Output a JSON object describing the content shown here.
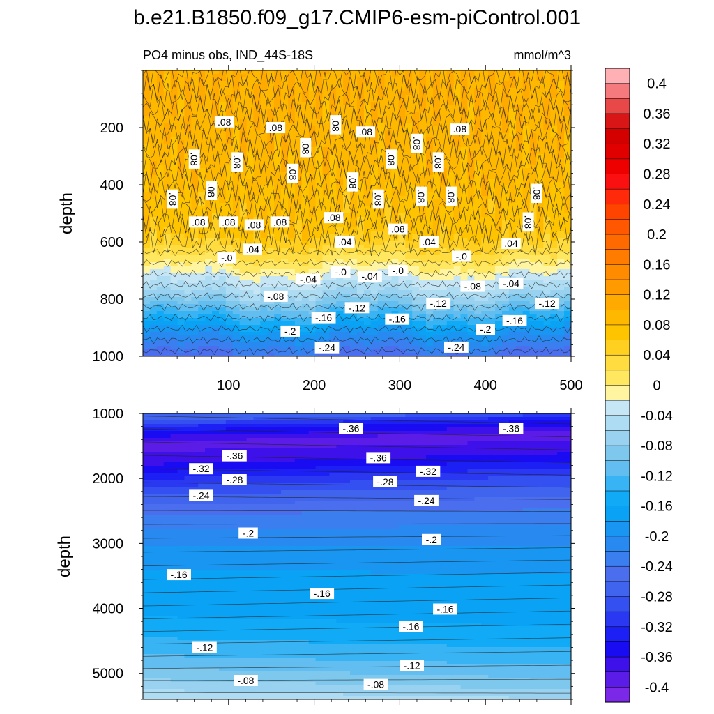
{
  "figure": {
    "title": "b.e21.B1850.f09_g17.CMIP6-esm-piControl.001",
    "left_label": "PO4 minus obs, IND_44S-18S",
    "right_label": "mmol/m^3"
  },
  "chart_data": [
    {
      "type": "contour",
      "panel": "upper",
      "ylabel": "depth",
      "xlabel": "",
      "xlim": [
        0,
        500
      ],
      "ylim": [
        1000,
        0
      ],
      "x_ticks": [
        "100",
        "200",
        "300",
        "400",
        "500"
      ],
      "y_ticks": [
        "200",
        "400",
        "600",
        "800",
        "1000"
      ],
      "x_tick_values": [
        100,
        200,
        300,
        400,
        500
      ],
      "y_tick_values": [
        200,
        400,
        600,
        800,
        1000
      ],
      "depth_profile": [
        {
          "depth": 5,
          "value": 0.1
        },
        {
          "depth": 300,
          "value": 0.09
        },
        {
          "depth": 560,
          "value": 0.07
        },
        {
          "depth": 640,
          "value": 0.03
        },
        {
          "depth": 700,
          "value": -0.01
        },
        {
          "depth": 780,
          "value": -0.06
        },
        {
          "depth": 860,
          "value": -0.13
        },
        {
          "depth": 920,
          "value": -0.19
        },
        {
          "depth": 1000,
          "value": -0.25
        }
      ],
      "contour_labels": [
        {
          "text": ".08",
          "x": 95,
          "depth": 180
        },
        {
          "text": ".08",
          "x": 155,
          "depth": 200
        },
        {
          "text": ".08",
          "x": 225,
          "depth": 190
        },
        {
          "text": ".08",
          "x": 190,
          "depth": 270
        },
        {
          "text": ".08",
          "x": 260,
          "depth": 215
        },
        {
          "text": ".08",
          "x": 320,
          "depth": 255
        },
        {
          "text": ".08",
          "x": 370,
          "depth": 205
        },
        {
          "text": ".08",
          "x": 60,
          "depth": 310
        },
        {
          "text": ".08",
          "x": 110,
          "depth": 320
        },
        {
          "text": ".08",
          "x": 290,
          "depth": 310
        },
        {
          "text": ".08",
          "x": 345,
          "depth": 320
        },
        {
          "text": ".08",
          "x": 175,
          "depth": 360
        },
        {
          "text": ".08",
          "x": 245,
          "depth": 390
        },
        {
          "text": ".08",
          "x": 80,
          "depth": 420
        },
        {
          "text": ".08",
          "x": 35,
          "depth": 450
        },
        {
          "text": ".08",
          "x": 275,
          "depth": 450
        },
        {
          "text": ".08",
          "x": 325,
          "depth": 440
        },
        {
          "text": ".08",
          "x": 360,
          "depth": 440
        },
        {
          "text": ".08",
          "x": 460,
          "depth": 430
        },
        {
          "text": ".08",
          "x": 65,
          "depth": 530
        },
        {
          "text": ".08",
          "x": 100,
          "depth": 530
        },
        {
          "text": ".08",
          "x": 130,
          "depth": 540
        },
        {
          "text": ".08",
          "x": 160,
          "depth": 530
        },
        {
          "text": ".08",
          "x": 223,
          "depth": 515
        },
        {
          "text": ".08",
          "x": 298,
          "depth": 555
        },
        {
          "text": ".08",
          "x": 450,
          "depth": 530
        },
        {
          "text": ".04",
          "x": 128,
          "depth": 625
        },
        {
          "text": ".04",
          "x": 236,
          "depth": 600
        },
        {
          "text": ".04",
          "x": 334,
          "depth": 600
        },
        {
          "text": ".04",
          "x": 430,
          "depth": 605
        },
        {
          "text": "-.0",
          "x": 98,
          "depth": 655
        },
        {
          "text": "-.0",
          "x": 231,
          "depth": 705
        },
        {
          "text": "-.0",
          "x": 298,
          "depth": 700
        },
        {
          "text": "-.0",
          "x": 372,
          "depth": 650
        },
        {
          "text": "-.04",
          "x": 193,
          "depth": 730
        },
        {
          "text": "-.04",
          "x": 265,
          "depth": 720
        },
        {
          "text": "-.04",
          "x": 430,
          "depth": 745
        },
        {
          "text": "-.08",
          "x": 155,
          "depth": 790
        },
        {
          "text": "-.08",
          "x": 385,
          "depth": 755
        },
        {
          "text": "-.12",
          "x": 250,
          "depth": 830
        },
        {
          "text": "-.12",
          "x": 345,
          "depth": 815
        },
        {
          "text": "-.12",
          "x": 472,
          "depth": 815
        },
        {
          "text": "-.16",
          "x": 211,
          "depth": 865
        },
        {
          "text": "-.16",
          "x": 297,
          "depth": 870
        },
        {
          "text": "-.16",
          "x": 434,
          "depth": 875
        },
        {
          "text": "-.2",
          "x": 172,
          "depth": 912
        },
        {
          "text": "-.2",
          "x": 400,
          "depth": 905
        },
        {
          "text": "-.24",
          "x": 215,
          "depth": 970
        },
        {
          "text": "-.24",
          "x": 366,
          "depth": 968
        }
      ]
    },
    {
      "type": "contour",
      "panel": "lower",
      "ylabel": "depth",
      "xlabel": "",
      "xlim": [
        0,
        500
      ],
      "ylim": [
        5400,
        1000
      ],
      "y_ticks": [
        "1000",
        "2000",
        "3000",
        "4000",
        "5000"
      ],
      "y_tick_values": [
        1000,
        2000,
        3000,
        4000,
        5000
      ],
      "x_tick_values": [
        100,
        200,
        300,
        400,
        500
      ],
      "depth_profile": [
        {
          "depth": 1000,
          "value": -0.26
        },
        {
          "depth": 1150,
          "value": -0.33
        },
        {
          "depth": 1400,
          "value": -0.39
        },
        {
          "depth": 1700,
          "value": -0.36
        },
        {
          "depth": 2100,
          "value": -0.29
        },
        {
          "depth": 2600,
          "value": -0.23
        },
        {
          "depth": 3200,
          "value": -0.19
        },
        {
          "depth": 3800,
          "value": -0.165
        },
        {
          "depth": 4200,
          "value": -0.16
        },
        {
          "depth": 4700,
          "value": -0.13
        },
        {
          "depth": 5100,
          "value": -0.09
        },
        {
          "depth": 5400,
          "value": -0.05
        }
      ],
      "contour_labels": [
        {
          "text": "-.36",
          "x": 243,
          "depth": 1230
        },
        {
          "text": "-.36",
          "x": 430,
          "depth": 1230
        },
        {
          "text": "-.36",
          "x": 107,
          "depth": 1650
        },
        {
          "text": "-.36",
          "x": 275,
          "depth": 1680
        },
        {
          "text": "-.32",
          "x": 68,
          "depth": 1850
        },
        {
          "text": "-.32",
          "x": 333,
          "depth": 1890
        },
        {
          "text": "-.28",
          "x": 107,
          "depth": 2020
        },
        {
          "text": "-.28",
          "x": 283,
          "depth": 2050
        },
        {
          "text": "-.24",
          "x": 68,
          "depth": 2260
        },
        {
          "text": "-.24",
          "x": 331,
          "depth": 2340
        },
        {
          "text": "-.2",
          "x": 123,
          "depth": 2840
        },
        {
          "text": "-.2",
          "x": 337,
          "depth": 2940
        },
        {
          "text": "-.16",
          "x": 42,
          "depth": 3480
        },
        {
          "text": "-.16",
          "x": 209,
          "depth": 3770
        },
        {
          "text": "-.16",
          "x": 353,
          "depth": 4010
        },
        {
          "text": "-.16",
          "x": 313,
          "depth": 4280
        },
        {
          "text": "-.12",
          "x": 72,
          "depth": 4600
        },
        {
          "text": "-.12",
          "x": 314,
          "depth": 4880
        },
        {
          "text": "-.08",
          "x": 120,
          "depth": 5110
        },
        {
          "text": "-.08",
          "x": 272,
          "depth": 5170
        }
      ]
    }
  ],
  "colorbar": {
    "labels": [
      "0.4",
      "0.36",
      "0.32",
      "0.28",
      "0.24",
      "0.2",
      "0.16",
      "0.12",
      "0.08",
      "0.04",
      "0",
      "-0.04",
      "-0.08",
      "-0.12",
      "-0.16",
      "-0.2",
      "-0.24",
      "-0.28",
      "-0.32",
      "-0.36",
      "-0.4"
    ],
    "levels": [
      0.42,
      0.4,
      0.38,
      0.36,
      0.34,
      0.32,
      0.3,
      0.28,
      0.26,
      0.24,
      0.22,
      0.2,
      0.18,
      0.16,
      0.14,
      0.12,
      0.1,
      0.08,
      0.06,
      0.04,
      0.02,
      0,
      -0.02,
      -0.04,
      -0.06,
      -0.08,
      -0.1,
      -0.12,
      -0.14,
      -0.16,
      -0.18,
      -0.2,
      -0.22,
      -0.24,
      -0.26,
      -0.28,
      -0.3,
      -0.32,
      -0.34,
      -0.36,
      -0.38,
      -0.4,
      -0.42
    ],
    "colors": [
      "#ffb0b4",
      "#f47a7e",
      "#e84848",
      "#d81616",
      "#d40000",
      "#e00000",
      "#ee0000",
      "#fa1010",
      "#ff2a0a",
      "#ff4400",
      "#ff5800",
      "#ff6a00",
      "#ff7c00",
      "#ff8c00",
      "#ff9a00",
      "#ffaa00",
      "#ffb800",
      "#ffc400",
      "#ffd020",
      "#ffdd40",
      "#ffe860",
      "#fff4a0",
      "#c6e6f6",
      "#aedcf2",
      "#98d2f0",
      "#7ec8ee",
      "#62bef0",
      "#38b4f4",
      "#10aaf6",
      "#0aa2f4",
      "#1896f2",
      "#288af0",
      "#3a7ef0",
      "#4a6eee",
      "#4064ee",
      "#3450f0",
      "#2a38f2",
      "#1c20f4",
      "#1a0cf2",
      "#3e10ea",
      "#5a1ce6",
      "#7c28e8"
    ]
  }
}
